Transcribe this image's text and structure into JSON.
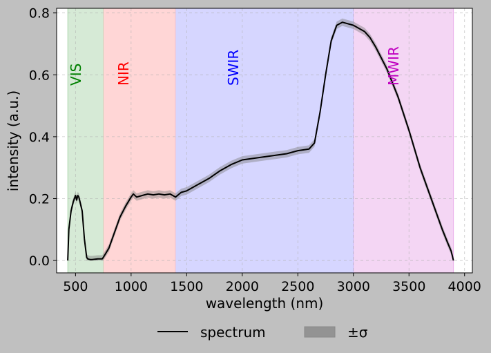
{
  "chart_data": {
    "type": "line",
    "xlabel": "wavelength (nm)",
    "ylabel": "intensity (a.u.)",
    "xlim": [
      330,
      4070
    ],
    "ylim": [
      -0.04,
      0.815
    ],
    "xticks": [
      500,
      1000,
      1500,
      2000,
      2500,
      3000,
      3500,
      4000
    ],
    "yticks": [
      0.0,
      0.2,
      0.4,
      0.6,
      0.8
    ],
    "grid": true,
    "legend_position": "bottom-center-outside",
    "regions": [
      {
        "label": "VIS",
        "start": 430,
        "end": 750,
        "fill": "#d6ead6",
        "text_color": "#008000"
      },
      {
        "label": "NIR",
        "start": 750,
        "end": 1400,
        "fill": "#ffd6d6",
        "text_color": "#ff0000"
      },
      {
        "label": "SWIR",
        "start": 1400,
        "end": 3000,
        "fill": "#d6d6ff",
        "text_color": "#0000ff"
      },
      {
        "label": "MWIR",
        "start": 3000,
        "end": 3900,
        "fill": "#f4d6f4",
        "text_color": "#c000c0"
      }
    ],
    "series": [
      {
        "name": "spectrum",
        "color": "#000000",
        "x": [
          430,
          440,
          460,
          480,
          500,
          510,
          520,
          530,
          540,
          560,
          580,
          600,
          610,
          630,
          650,
          700,
          740,
          750,
          800,
          850,
          900,
          950,
          1000,
          1020,
          1050,
          1100,
          1150,
          1200,
          1250,
          1300,
          1350,
          1400,
          1450,
          1500,
          1600,
          1700,
          1800,
          1900,
          2000,
          2100,
          2200,
          2300,
          2400,
          2500,
          2600,
          2650,
          2700,
          2750,
          2800,
          2850,
          2900,
          3000,
          3050,
          3100,
          3150,
          3200,
          3300,
          3400,
          3500,
          3600,
          3700,
          3800,
          3850,
          3880,
          3900
        ],
        "values": [
          0.0,
          0.1,
          0.16,
          0.19,
          0.21,
          0.195,
          0.21,
          0.205,
          0.19,
          0.16,
          0.07,
          0.01,
          0.005,
          0.003,
          0.003,
          0.005,
          0.005,
          0.01,
          0.04,
          0.09,
          0.14,
          0.175,
          0.205,
          0.215,
          0.205,
          0.21,
          0.215,
          0.212,
          0.215,
          0.212,
          0.215,
          0.205,
          0.22,
          0.225,
          0.245,
          0.265,
          0.29,
          0.31,
          0.325,
          0.33,
          0.335,
          0.34,
          0.345,
          0.355,
          0.36,
          0.38,
          0.48,
          0.6,
          0.71,
          0.76,
          0.77,
          0.76,
          0.75,
          0.74,
          0.72,
          0.69,
          0.62,
          0.53,
          0.42,
          0.3,
          0.2,
          0.1,
          0.055,
          0.03,
          0.0
        ]
      },
      {
        "name": "±σ",
        "color": "#808080",
        "sigma": 0.012
      }
    ]
  }
}
